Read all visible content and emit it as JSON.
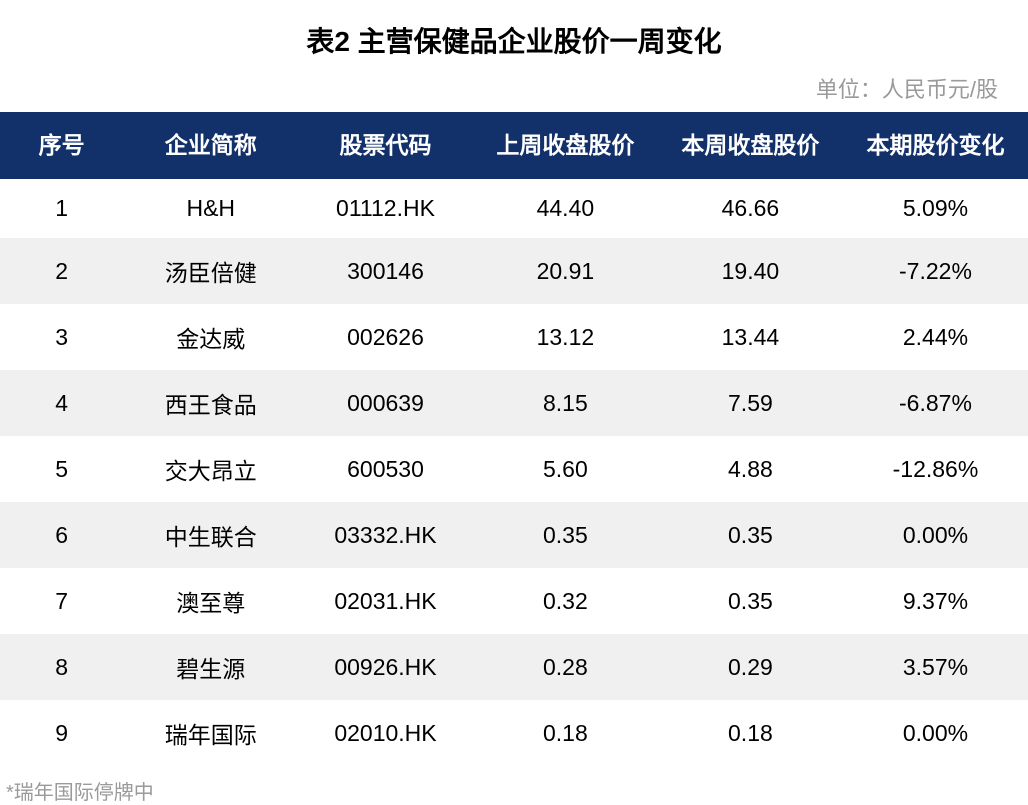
{
  "title": "表2 主营保健品企业股价一周变化",
  "unit_label": "单位：人民币元/股",
  "table": {
    "type": "table",
    "header_bg": "#12306a",
    "header_text_color": "#ffffff",
    "row_odd_bg": "#ffffff",
    "row_even_bg": "#f0f0f0",
    "cell_text_color": "#000000",
    "header_fontsize": 23,
    "cell_fontsize": 23,
    "columns": [
      {
        "label": "序号",
        "width_pct": 12
      },
      {
        "label": "企业简称",
        "width_pct": 17
      },
      {
        "label": "股票代码",
        "width_pct": 17
      },
      {
        "label": "上周收盘股价",
        "width_pct": 18
      },
      {
        "label": "本周收盘股价",
        "width_pct": 18
      },
      {
        "label": "本期股价变化",
        "width_pct": 18
      }
    ],
    "rows": [
      {
        "seq": "1",
        "name": "H&H",
        "code": "01112.HK",
        "last": "44.40",
        "curr": "46.66",
        "change": "5.09%"
      },
      {
        "seq": "2",
        "name": "汤臣倍健",
        "code": "300146",
        "last": "20.91",
        "curr": "19.40",
        "change": "-7.22%"
      },
      {
        "seq": "3",
        "name": "金达威",
        "code": "002626",
        "last": "13.12",
        "curr": "13.44",
        "change": "2.44%"
      },
      {
        "seq": "4",
        "name": "西王食品",
        "code": "000639",
        "last": "8.15",
        "curr": "7.59",
        "change": "-6.87%"
      },
      {
        "seq": "5",
        "name": "交大昂立",
        "code": "600530",
        "last": "5.60",
        "curr": "4.88",
        "change": "-12.86%"
      },
      {
        "seq": "6",
        "name": "中生联合",
        "code": "03332.HK",
        "last": "0.35",
        "curr": "0.35",
        "change": "0.00%"
      },
      {
        "seq": "7",
        "name": "澳至尊",
        "code": "02031.HK",
        "last": "0.32",
        "curr": "0.35",
        "change": "9.37%"
      },
      {
        "seq": "8",
        "name": "碧生源",
        "code": "00926.HK",
        "last": "0.28",
        "curr": "0.29",
        "change": "3.57%"
      },
      {
        "seq": "9",
        "name": "瑞年国际",
        "code": "02010.HK",
        "last": "0.18",
        "curr": "0.18",
        "change": "0.00%"
      }
    ]
  },
  "footnote": "*瑞年国际停牌中",
  "colors": {
    "title_color": "#000000",
    "unit_label_color": "#9a9a9a",
    "footnote_color": "#9a9a9a",
    "background": "#ffffff"
  },
  "typography": {
    "title_fontsize": 28,
    "title_weight": "bold",
    "unit_fontsize": 22,
    "footnote_fontsize": 20,
    "font_family": "Microsoft YaHei / PingFang SC"
  }
}
